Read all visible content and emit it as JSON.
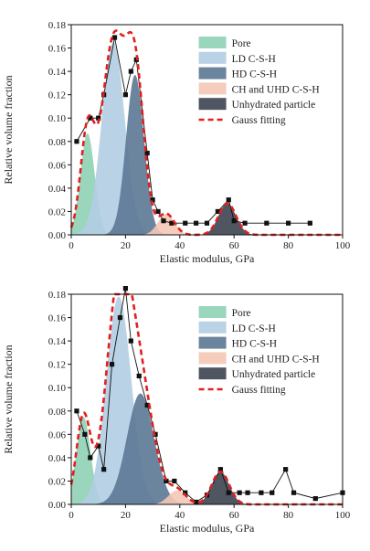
{
  "chart_data": [
    {
      "type": "area",
      "xlabel": "Elastic modulus, GPa",
      "ylabel": "Relative volume fraction",
      "xlim": [
        0,
        100
      ],
      "ylim": [
        0,
        0.18
      ],
      "xticks": [
        "0",
        "20",
        "40",
        "60",
        "80",
        "100"
      ],
      "yticks": [
        "0.00",
        "0.02",
        "0.04",
        "0.06",
        "0.08",
        "0.10",
        "0.12",
        "0.14",
        "0.16",
        "0.18"
      ],
      "legend": {
        "placement": "top-right"
      },
      "series": [
        {
          "name": "Pore",
          "kind": "gaussian",
          "color": "#8fd1b5",
          "mu": 6,
          "sigma": 2.6,
          "amp": 0.087
        },
        {
          "name": "LD C-S-H",
          "kind": "gaussian",
          "color": "#b1cde3",
          "mu": 15.5,
          "sigma": 4.2,
          "amp": 0.165
        },
        {
          "name": "HD C-S-H",
          "kind": "gaussian",
          "color": "#5c7895",
          "mu": 23.5,
          "sigma": 3.3,
          "amp": 0.137
        },
        {
          "name": "CH and UHD C-S-H",
          "kind": "gaussian",
          "color": "#f5c6b6",
          "mu": 35,
          "sigma": 3.0,
          "amp": 0.018
        },
        {
          "name": "Unhydrated particle",
          "kind": "gaussian",
          "color": "#3c4350",
          "mu": 57.5,
          "sigma": 3.2,
          "amp": 0.027
        },
        {
          "name": "Gauss fitting",
          "kind": "fit",
          "color": "#e02020"
        }
      ],
      "data": {
        "x": [
          0,
          2,
          4,
          6,
          8,
          10,
          12,
          14,
          16,
          18,
          20,
          22,
          24,
          26,
          28,
          30,
          32,
          34,
          36,
          38,
          40,
          42,
          44,
          46,
          48,
          50,
          52,
          54,
          56,
          58,
          60,
          62,
          64,
          66,
          68,
          70,
          72,
          74,
          76,
          78,
          80,
          82,
          84,
          86,
          88,
          90,
          92,
          94,
          96,
          98,
          100
        ],
        "y": [
          0.03,
          0.06,
          0.08,
          0.09,
          0.1,
          0.098,
          0.11,
          0.122,
          0.169,
          0.148,
          0.126,
          0.14,
          0.15,
          0.1,
          0.06,
          0.03,
          0.022,
          0.013,
          0.009,
          0.011,
          0.009,
          0.006,
          0.01,
          0.005,
          0.01,
          0.009,
          0.01,
          0.016,
          0.024,
          0.031,
          0.012,
          0.0,
          0.004,
          0.0,
          0.002,
          0.0,
          0.01,
          0.0,
          0.002,
          0.0,
          0.01,
          0.0,
          0.003,
          0.0,
          0.01,
          0.0,
          0.0,
          0.0,
          0.0,
          0.0,
          0.0
        ],
        "markers": [
          [
            2,
            0.08
          ],
          [
            7,
            0.1
          ],
          [
            10,
            0.1
          ],
          [
            12,
            0.12
          ],
          [
            16,
            0.169
          ],
          [
            20,
            0.12
          ],
          [
            22,
            0.14
          ],
          [
            24,
            0.15
          ],
          [
            28,
            0.07
          ],
          [
            30,
            0.03
          ],
          [
            32,
            0.02
          ],
          [
            34,
            0.012
          ],
          [
            37,
            0.01
          ],
          [
            42,
            0.01
          ],
          [
            46,
            0.01
          ],
          [
            50,
            0.01
          ],
          [
            54,
            0.02
          ],
          [
            58,
            0.03
          ],
          [
            60,
            0.012
          ],
          [
            64,
            0.01
          ],
          [
            72,
            0.01
          ],
          [
            80,
            0.01
          ],
          [
            88,
            0.01
          ]
        ]
      }
    },
    {
      "type": "area",
      "xlabel": "Elastic modulus, GPa",
      "ylabel": "Relative volume fraction",
      "xlim": [
        0,
        100
      ],
      "ylim": [
        0,
        0.18
      ],
      "xticks": [
        "0",
        "20",
        "40",
        "60",
        "80",
        "100"
      ],
      "yticks": [
        "0.00",
        "0.02",
        "0.04",
        "0.06",
        "0.08",
        "0.10",
        "0.12",
        "0.14",
        "0.16",
        "0.18"
      ],
      "legend": {
        "placement": "top-right"
      },
      "series": [
        {
          "name": "Pore",
          "kind": "gaussian",
          "color": "#8fd1b5",
          "mu": 4.5,
          "sigma": 2.6,
          "amp": 0.075
        },
        {
          "name": "LD C-S-H",
          "kind": "gaussian",
          "color": "#b1cde3",
          "mu": 17.5,
          "sigma": 4.6,
          "amp": 0.178
        },
        {
          "name": "HD C-S-H",
          "kind": "gaussian",
          "color": "#5c7895",
          "mu": 25.5,
          "sigma": 5.0,
          "amp": 0.095
        },
        {
          "name": "CH and UHD C-S-H",
          "kind": "gaussian",
          "color": "#f5c6b6",
          "mu": 39,
          "sigma": 3.2,
          "amp": 0.012
        },
        {
          "name": "Unhydrated particle",
          "kind": "gaussian",
          "color": "#3c4350",
          "mu": 55,
          "sigma": 3.2,
          "amp": 0.028
        },
        {
          "name": "Gauss fitting",
          "kind": "fit",
          "color": "#e02020"
        }
      ],
      "data": {
        "markers": [
          [
            2,
            0.08
          ],
          [
            5,
            0.06
          ],
          [
            7,
            0.04
          ],
          [
            10,
            0.05
          ],
          [
            12,
            0.03
          ],
          [
            15,
            0.12
          ],
          [
            18,
            0.16
          ],
          [
            20,
            0.185
          ],
          [
            22,
            0.14
          ],
          [
            25,
            0.11
          ],
          [
            28,
            0.085
          ],
          [
            31,
            0.06
          ],
          [
            35,
            0.02
          ],
          [
            38,
            0.02
          ],
          [
            42,
            0.01
          ],
          [
            46,
            0.002
          ],
          [
            50,
            0.008
          ],
          [
            55,
            0.03
          ],
          [
            58,
            0.01
          ],
          [
            62,
            0.01
          ],
          [
            65,
            0.01
          ],
          [
            70,
            0.01
          ],
          [
            74,
            0.01
          ],
          [
            79,
            0.03
          ],
          [
            82,
            0.01
          ],
          [
            90,
            0.005
          ],
          [
            100,
            0.01
          ]
        ]
      }
    }
  ]
}
